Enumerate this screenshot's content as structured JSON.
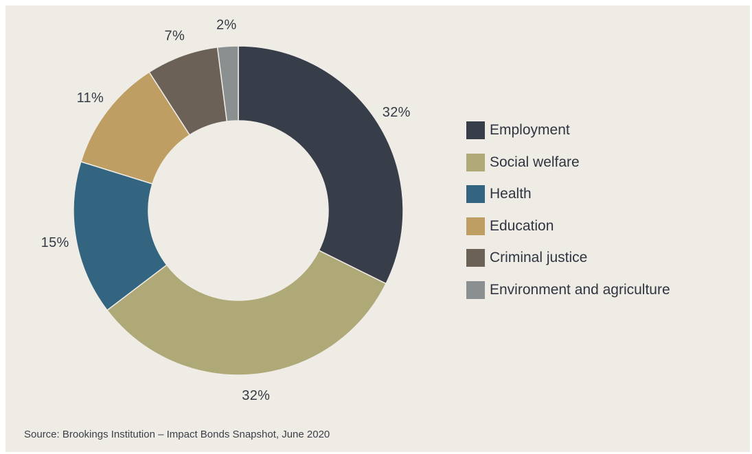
{
  "chart_data": {
    "type": "pie",
    "categories": [
      "Employment",
      "Social welfare",
      "Health",
      "Education",
      "Criminal justice",
      "Environment and agriculture"
    ],
    "values": [
      32,
      32,
      15,
      11,
      7,
      2
    ],
    "value_labels": [
      "32%",
      "32%",
      "15%",
      "11%",
      "7%",
      "2%"
    ],
    "colors": [
      "#373d49",
      "#afa877",
      "#336580",
      "#bf9e63",
      "#6b6157",
      "#8a9090"
    ],
    "style": "donut",
    "legend_position": "right",
    "source": "Source: Brookings Institution – Impact Bonds Snapshot, June 2020"
  }
}
